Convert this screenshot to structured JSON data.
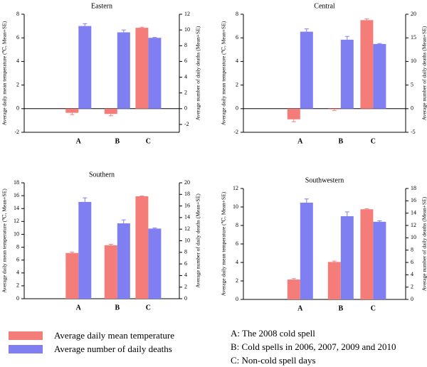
{
  "colors": {
    "temperature": "#f47d7a",
    "deaths": "#7f7ff2",
    "axis": "#000000"
  },
  "legend": {
    "temperature_label": "Average daily mean temperature",
    "deaths_label": "Average number of daily deaths"
  },
  "notes": [
    "A: The 2008 cold spell",
    "B: Cold spells in 2006, 2007, 2009 and 2010",
    "C: Non-cold spell days"
  ],
  "chart_data": [
    {
      "type": "bar",
      "title": "Eastern",
      "categories": [
        "A",
        "B",
        "C"
      ],
      "ylabel": "Average daily mean temperature (℃, Mean+SE)",
      "y2label": "Average number of daily deaths (Mean+SE)",
      "ylim": [
        -2,
        8
      ],
      "yticks": [
        -2,
        0,
        2,
        4,
        6,
        8
      ],
      "y2lim": [
        -3,
        12
      ],
      "y2ticks": [
        -2,
        0,
        2,
        4,
        6,
        8,
        10,
        12
      ],
      "series": [
        {
          "axis": "left",
          "values": [
            -0.35,
            -0.45,
            6.85
          ],
          "se": [
            0.15,
            0.15,
            0.05
          ]
        },
        {
          "axis": "right",
          "values": [
            10.5,
            9.7,
            9.0
          ],
          "se": [
            0.3,
            0.3,
            0.05
          ]
        }
      ]
    },
    {
      "type": "bar",
      "title": "Central",
      "categories": [
        "A",
        "B",
        "C"
      ],
      "ylabel": "Average daily mean temperature (℃, Mean+SE)",
      "y2label": "Average number of daily deaths (Mean+SE)",
      "ylim": [
        -2,
        8
      ],
      "yticks": [
        -2,
        0,
        2,
        4,
        6,
        8
      ],
      "y2lim": [
        -5,
        20
      ],
      "y2ticks": [
        -5,
        0,
        5,
        10,
        15,
        20
      ],
      "series": [
        {
          "axis": "left",
          "values": [
            -0.9,
            -0.05,
            7.5
          ],
          "se": [
            0.2,
            0.1,
            0.1
          ]
        },
        {
          "axis": "right",
          "values": [
            16.3,
            14.6,
            13.7
          ],
          "se": [
            0.6,
            0.7,
            0.1
          ]
        }
      ]
    },
    {
      "type": "bar",
      "title": "Southern",
      "categories": [
        "A",
        "B",
        "C"
      ],
      "ylabel": "Average daily mean temperature (℃, Mean+SE)",
      "y2label": "Average number of daily deaths (Mean+SE)",
      "ylim": [
        0,
        18
      ],
      "yticks": [
        0,
        2,
        4,
        6,
        8,
        10,
        12,
        14,
        16,
        18
      ],
      "y2lim": [
        0,
        20
      ],
      "y2ticks": [
        0,
        2,
        4,
        6,
        8,
        10,
        12,
        14,
        16,
        18,
        20
      ],
      "series": [
        {
          "axis": "left",
          "values": [
            7.1,
            8.3,
            15.9
          ],
          "se": [
            0.15,
            0.15,
            0.05
          ]
        },
        {
          "axis": "right",
          "values": [
            16.7,
            13.0,
            12.1
          ],
          "se": [
            0.7,
            0.6,
            0.1
          ]
        }
      ]
    },
    {
      "type": "bar",
      "title": "Southwestern",
      "categories": [
        "A",
        "B",
        "C"
      ],
      "ylabel": "Average daily mean temperature (℃, Mean+SE)",
      "y2label": "Average number of daily deaths (Mean+SE)",
      "ylim": [
        0,
        12
      ],
      "yticks": [
        0,
        2,
        4,
        6,
        8,
        10,
        12
      ],
      "y2lim": [
        0,
        18
      ],
      "y2ticks": [
        0,
        2,
        4,
        6,
        8,
        10,
        12,
        14,
        16,
        18
      ],
      "series": [
        {
          "axis": "left",
          "values": [
            2.15,
            4.05,
            9.75
          ],
          "se": [
            0.1,
            0.1,
            0.05
          ]
        },
        {
          "axis": "right",
          "values": [
            15.7,
            13.5,
            12.6
          ],
          "se": [
            0.6,
            0.7,
            0.15
          ]
        }
      ]
    }
  ]
}
